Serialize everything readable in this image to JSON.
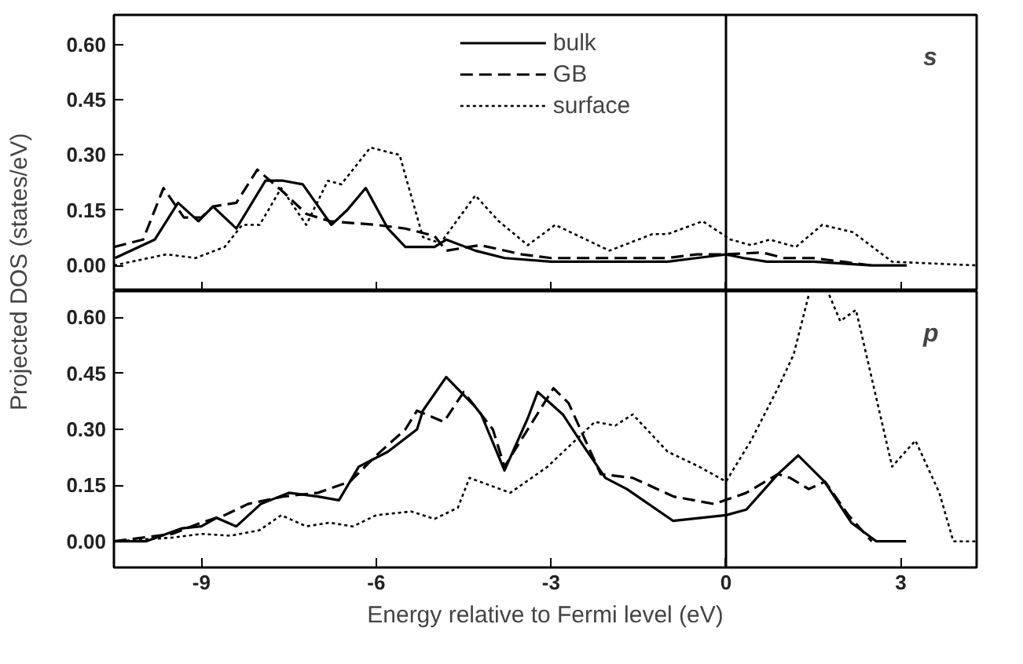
{
  "chart_data": [
    {
      "type": "line",
      "ylabel": "Projected DOS (states/eV)",
      "xlim": [
        -10.5,
        4.3
      ],
      "xticks": [
        -9,
        -6,
        -3,
        0,
        3
      ],
      "ylim": [
        -0.07,
        0.68
      ],
      "yticks": [
        {
          "value": 0,
          "label": "0.00"
        },
        {
          "value": 0.15,
          "label": "0.15"
        },
        {
          "value": 0.3,
          "label": "0.30"
        },
        {
          "value": 0.45,
          "label": "0.45"
        },
        {
          "value": 0.6,
          "label": "0.60"
        }
      ],
      "tick_labels": "y",
      "legend": "top",
      "grid": false,
      "annotations": [
        "s"
      ],
      "ref_lines": [
        {
          "axis": "x",
          "value": 0,
          "color": "#000000",
          "line_style": "solid"
        }
      ],
      "series": [
        {
          "name": "bulk",
          "color": "#000000",
          "line_style": "solid",
          "x": [
            -10.48,
            -9.8,
            -9.4,
            -9.05,
            -8.8,
            -8.4,
            -7.9,
            -7.6,
            -7.26,
            -6.77,
            -6.5,
            -6.18,
            -5.8,
            -5.5,
            -5.0,
            -4.8,
            -4.3,
            -3.8,
            -3.0,
            -2.0,
            -1.0,
            -0.5,
            0,
            0.3,
            0.7,
            1.5,
            2.5,
            3.1
          ],
          "values": [
            0.02,
            0.07,
            0.17,
            0.12,
            0.16,
            0.1,
            0.23,
            0.23,
            0.22,
            0.11,
            0.15,
            0.21,
            0.1,
            0.05,
            0.05,
            0.07,
            0.04,
            0.02,
            0.01,
            0.01,
            0.01,
            0.02,
            0.03,
            0.02,
            0.01,
            0.01,
            0.0,
            0.0
          ]
        },
        {
          "name": "GB",
          "color": "#000000",
          "line_style": "dashed",
          "x": [
            -10.5,
            -10.0,
            -9.65,
            -9.3,
            -9.0,
            -8.8,
            -8.4,
            -8.04,
            -7.6,
            -7.2,
            -6.8,
            -6.0,
            -5.5,
            -5.0,
            -4.8,
            -4.22,
            -3.5,
            -3.0,
            -1.0,
            -0.5,
            0,
            0.62,
            1.0,
            1.5,
            2.0,
            2.5
          ],
          "values": [
            0.05,
            0.07,
            0.21,
            0.13,
            0.13,
            0.16,
            0.17,
            0.26,
            0.2,
            0.14,
            0.12,
            0.11,
            0.1,
            0.08,
            0.04,
            0.055,
            0.03,
            0.02,
            0.02,
            0.03,
            0.03,
            0.035,
            0.02,
            0.02,
            0.01,
            0.0
          ]
        },
        {
          "name": "surface",
          "color": "#000000",
          "line_style": "dotted",
          "x": [
            -10.5,
            -9.6,
            -9.1,
            -8.6,
            -8.3,
            -8.0,
            -7.63,
            -7.2,
            -6.83,
            -6.6,
            -6.1,
            -5.6,
            -5.2,
            -4.9,
            -4.3,
            -3.9,
            -3.4,
            -2.93,
            -2.0,
            -1.26,
            -1.0,
            -0.4,
            0.08,
            0.43,
            0.75,
            1.2,
            1.65,
            2.18,
            2.85,
            4.3
          ],
          "values": [
            0.0,
            0.03,
            0.02,
            0.05,
            0.11,
            0.11,
            0.21,
            0.11,
            0.23,
            0.22,
            0.32,
            0.3,
            0.077,
            0.06,
            0.19,
            0.12,
            0.055,
            0.11,
            0.04,
            0.085,
            0.085,
            0.12,
            0.07,
            0.055,
            0.07,
            0.05,
            0.11,
            0.09,
            0.01,
            0.0
          ]
        }
      ]
    },
    {
      "type": "line",
      "xlabel": "Energy relative to Fermi level (eV)",
      "xlim": [
        -10.5,
        4.3
      ],
      "xticks": [
        -9,
        -6,
        -3,
        0,
        3
      ],
      "ylim": [
        -0.07,
        0.67
      ],
      "yticks": [
        {
          "value": 0,
          "label": "0.00"
        },
        {
          "value": 0.15,
          "label": "0.15"
        },
        {
          "value": 0.3,
          "label": "0.30"
        },
        {
          "value": 0.45,
          "label": "0.45"
        },
        {
          "value": 0.6,
          "label": "0.60"
        }
      ],
      "legend": false,
      "grid": false,
      "annotations": [
        "p"
      ],
      "ref_lines": [
        {
          "axis": "x",
          "value": 0,
          "color": "#000000",
          "line_style": "solid"
        }
      ],
      "series": [
        {
          "color": "#000000",
          "line_style": "solid",
          "x": [
            -10.5,
            -9.95,
            -9.33,
            -9.0,
            -8.74,
            -8.4,
            -7.98,
            -7.5,
            -7.0,
            -6.64,
            -6.3,
            -5.8,
            -5.3,
            -5.2,
            -4.8,
            -4.3,
            -4.2,
            -3.8,
            -3.4,
            -3.23,
            -2.8,
            -2.42,
            -2.07,
            -1.7,
            -0.91,
            0,
            0.35,
            0.89,
            1.24,
            1.69,
            2.15,
            2.58,
            3.09
          ],
          "values": [
            0.0,
            0.0,
            0.035,
            0.04,
            0.063,
            0.04,
            0.1,
            0.13,
            0.12,
            0.11,
            0.2,
            0.24,
            0.3,
            0.35,
            0.44,
            0.36,
            0.34,
            0.19,
            0.33,
            0.4,
            0.34,
            0.25,
            0.17,
            0.14,
            0.055,
            0.07,
            0.085,
            0.18,
            0.23,
            0.16,
            0.05,
            0.0,
            0.0
          ]
        },
        {
          "color": "#000000",
          "line_style": "dashed",
          "x": [
            -10.5,
            -9.5,
            -9.0,
            -8.6,
            -8.2,
            -7.6,
            -7.0,
            -6.45,
            -6.0,
            -5.5,
            -5.3,
            -4.84,
            -4.5,
            -4.0,
            -3.8,
            -2.96,
            -2.7,
            -2.15,
            -1.6,
            -0.9,
            -0.2,
            0.35,
            0.89,
            1.1,
            1.42,
            1.7,
            2.1,
            2.5
          ],
          "values": [
            0.0,
            0.02,
            0.05,
            0.07,
            0.1,
            0.12,
            0.13,
            0.16,
            0.23,
            0.3,
            0.35,
            0.32,
            0.4,
            0.3,
            0.2,
            0.41,
            0.37,
            0.18,
            0.17,
            0.12,
            0.1,
            0.13,
            0.18,
            0.17,
            0.14,
            0.16,
            0.07,
            0.0
          ]
        },
        {
          "color": "#000000",
          "line_style": "dotted",
          "x": [
            -10.5,
            -9.5,
            -9.0,
            -8.5,
            -8.0,
            -7.63,
            -7.2,
            -6.8,
            -6.4,
            -6.0,
            -5.4,
            -5.0,
            -4.6,
            -4.4,
            -3.7,
            -3.06,
            -2.25,
            -1.9,
            -1.6,
            -1.0,
            -0.46,
            0,
            0.43,
            0.89,
            1.16,
            1.42,
            1.6,
            1.77,
            1.96,
            2.23,
            2.85,
            3.25,
            3.66,
            3.9,
            4.3
          ],
          "values": [
            0.0,
            0.01,
            0.02,
            0.015,
            0.03,
            0.07,
            0.04,
            0.05,
            0.04,
            0.07,
            0.08,
            0.06,
            0.09,
            0.17,
            0.13,
            0.2,
            0.32,
            0.31,
            0.34,
            0.24,
            0.2,
            0.16,
            0.27,
            0.41,
            0.5,
            0.66,
            null,
            0.66,
            0.59,
            0.62,
            0.2,
            0.27,
            0.13,
            0.0,
            0.0
          ]
        }
      ]
    }
  ]
}
